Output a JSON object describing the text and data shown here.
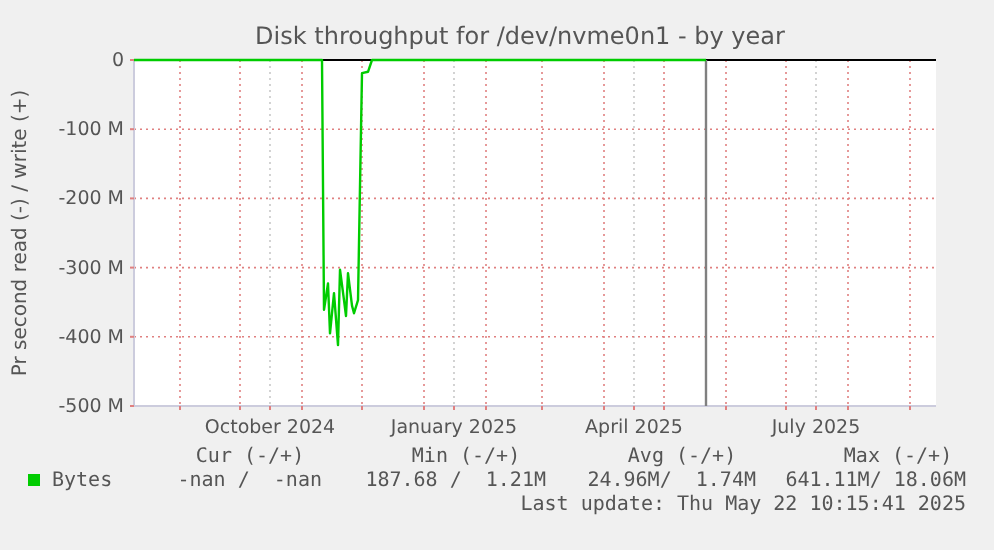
{
  "chart_data": {
    "type": "line",
    "title": "Disk throughput for /dev/nvme0n1 - by year",
    "ylabel": "Pr second read (-) / write (+)",
    "x": [
      "2024-08-09",
      "2024-11-11",
      "2024-11-12",
      "2024-11-14",
      "2024-11-15",
      "2024-11-17",
      "2024-11-19",
      "2024-11-20",
      "2024-11-22",
      "2024-11-23",
      "2024-11-24",
      "2024-11-26",
      "2024-11-27",
      "2024-11-29",
      "2024-12-01",
      "2024-12-04",
      "2024-12-06",
      "2025-05-22"
    ],
    "series": [
      {
        "name": "Bytes",
        "color": "#00cc00",
        "values": [
          0,
          0,
          -361,
          -323,
          -395,
          -337,
          -412,
          -303,
          -347,
          -370,
          -308,
          -355,
          -366,
          -347,
          -19,
          -17,
          0,
          0
        ]
      }
    ],
    "xlim": [
      "2024-08-09",
      "2025-09-14"
    ],
    "xticks": [
      {
        "value": "2024-09-01",
        "label": null
      },
      {
        "value": "2024-10-01",
        "label": null
      },
      {
        "value": "2024-10-16",
        "label": "October 2024"
      },
      {
        "value": "2024-11-01",
        "label": null
      },
      {
        "value": "2024-12-01",
        "label": null
      },
      {
        "value": "2025-01-01",
        "label": null
      },
      {
        "value": "2025-01-16",
        "label": "January 2025"
      },
      {
        "value": "2025-02-01",
        "label": null
      },
      {
        "value": "2025-03-01",
        "label": null
      },
      {
        "value": "2025-04-01",
        "label": null
      },
      {
        "value": "2025-04-16",
        "label": "April 2025"
      },
      {
        "value": "2025-05-01",
        "label": null
      },
      {
        "value": "2025-06-01",
        "label": null
      },
      {
        "value": "2025-07-01",
        "label": null
      },
      {
        "value": "2025-07-16",
        "label": "July 2025"
      },
      {
        "value": "2025-08-01",
        "label": null
      },
      {
        "value": "2025-09-01",
        "label": null
      }
    ],
    "ylim": [
      -500,
      0
    ],
    "yticks": [
      {
        "value": 0,
        "label": "0"
      },
      {
        "value": -100,
        "label": "-100 M"
      },
      {
        "value": -200,
        "label": "-200 M"
      },
      {
        "value": -300,
        "label": "-300 M"
      },
      {
        "value": -400,
        "label": "-400 M"
      },
      {
        "value": -500,
        "label": "-500 M"
      }
    ],
    "ref_lines": [
      {
        "axis": "x",
        "value": "2025-05-22",
        "color": "#808080"
      }
    ],
    "grid": true,
    "legend": "bottom",
    "marker": "none",
    "line_style": "solid",
    "annotations": [
      "Cur (-/+)",
      "Min (-/+)",
      "Avg (-/+)",
      "Max (-/+)",
      "-nan /  -nan",
      "187.68 /  1.21M",
      "24.96M/  1.74M",
      "641.11M/ 18.06M",
      "Last update: Thu May 22 10:15:41 2025"
    ]
  }
}
